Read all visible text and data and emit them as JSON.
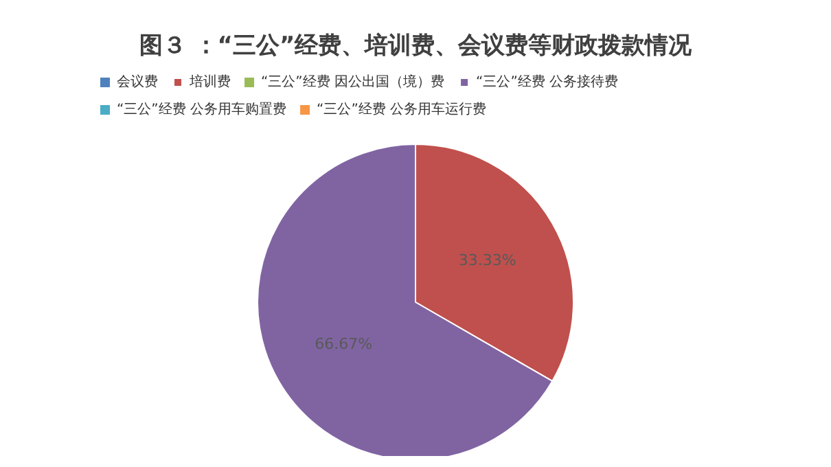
{
  "chart_data": {
    "type": "pie",
    "title": "图３ ：“三公”经费、培训费、会议费等财政拨款情况",
    "categories": [
      "会议费",
      "培训费",
      "“三公”经费 因公出国（境）费",
      "“三公”经费 公务接待费",
      "“三公”经费 公务用车购置费",
      "“三公”经费 公务用车运行费"
    ],
    "values": [
      0,
      33.33,
      0,
      66.67,
      0,
      0
    ],
    "colors": [
      "#4f81bd",
      "#c0504d",
      "#9bbb59",
      "#8064a2",
      "#4bacc6",
      "#f79646"
    ],
    "value_labels": [
      null,
      "33.33%",
      null,
      "66.67%",
      null,
      null
    ],
    "legend": "top"
  }
}
